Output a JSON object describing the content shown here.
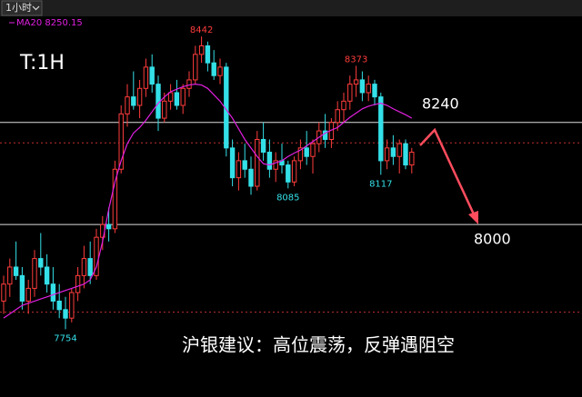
{
  "chart_data": {
    "type": "candlestick",
    "timeframe_menu": "1小时",
    "ma_label": "MA20 8250.15",
    "title": "T:1H",
    "caption": "沪银建议：高位震荡，反弹遇阻空",
    "ylim": [
      7680,
      8500
    ],
    "up_color": "#ff3c3c",
    "down_color": "#34e0e8",
    "ma_color": "#e020e0",
    "levels": [
      8240,
      8000
    ],
    "dashed_levels": [
      8192,
      7794
    ],
    "extremes": [
      8442,
      8373,
      8085,
      8117,
      7754
    ],
    "candles": [
      [
        7820,
        7880,
        7790,
        7860
      ],
      [
        7860,
        7920,
        7830,
        7900
      ],
      [
        7900,
        7960,
        7870,
        7880
      ],
      [
        7880,
        7900,
        7800,
        7820
      ],
      [
        7820,
        7870,
        7790,
        7850
      ],
      [
        7850,
        7940,
        7830,
        7920
      ],
      [
        7920,
        7980,
        7880,
        7900
      ],
      [
        7900,
        7930,
        7840,
        7860
      ],
      [
        7860,
        7900,
        7800,
        7820
      ],
      [
        7820,
        7860,
        7780,
        7800
      ],
      [
        7800,
        7830,
        7754,
        7780
      ],
      [
        7780,
        7850,
        7770,
        7840
      ],
      [
        7840,
        7900,
        7820,
        7880
      ],
      [
        7880,
        7950,
        7850,
        7920
      ],
      [
        7920,
        7960,
        7860,
        7880
      ],
      [
        7880,
        7990,
        7870,
        7970
      ],
      [
        7970,
        8020,
        7940,
        8000
      ],
      [
        8000,
        8040,
        7960,
        7990
      ],
      [
        7990,
        8150,
        7980,
        8130
      ],
      [
        8130,
        8280,
        8120,
        8260
      ],
      [
        8260,
        8330,
        8230,
        8300
      ],
      [
        8300,
        8360,
        8270,
        8280
      ],
      [
        8280,
        8340,
        8250,
        8320
      ],
      [
        8320,
        8390,
        8300,
        8370
      ],
      [
        8370,
        8400,
        8310,
        8330
      ],
      [
        8330,
        8350,
        8220,
        8250
      ],
      [
        8250,
        8310,
        8240,
        8290
      ],
      [
        8290,
        8330,
        8270,
        8310
      ],
      [
        8310,
        8340,
        8270,
        8280
      ],
      [
        8280,
        8330,
        8260,
        8320
      ],
      [
        8320,
        8360,
        8300,
        8340
      ],
      [
        8340,
        8420,
        8330,
        8400
      ],
      [
        8400,
        8442,
        8380,
        8420
      ],
      [
        8420,
        8430,
        8360,
        8380
      ],
      [
        8380,
        8410,
        8340,
        8350
      ],
      [
        8350,
        8390,
        8330,
        8370
      ],
      [
        8370,
        8380,
        8160,
        8180
      ],
      [
        8180,
        8200,
        8090,
        8110
      ],
      [
        8110,
        8170,
        8080,
        8150
      ],
      [
        8150,
        8190,
        8110,
        8130
      ],
      [
        8130,
        8160,
        8070,
        8090
      ],
      [
        8090,
        8220,
        8080,
        8200
      ],
      [
        8200,
        8240,
        8150,
        8170
      ],
      [
        8170,
        8200,
        8110,
        8130
      ],
      [
        8130,
        8170,
        8100,
        8150
      ],
      [
        8150,
        8190,
        8120,
        8140
      ],
      [
        8140,
        8150,
        8085,
        8100
      ],
      [
        8100,
        8160,
        8090,
        8150
      ],
      [
        8150,
        8200,
        8130,
        8180
      ],
      [
        8180,
        8220,
        8140,
        8160
      ],
      [
        8160,
        8200,
        8120,
        8190
      ],
      [
        8190,
        8240,
        8170,
        8220
      ],
      [
        8220,
        8260,
        8180,
        8200
      ],
      [
        8200,
        8250,
        8180,
        8240
      ],
      [
        8240,
        8290,
        8220,
        8270
      ],
      [
        8270,
        8310,
        8240,
        8290
      ],
      [
        8290,
        8350,
        8270,
        8330
      ],
      [
        8330,
        8373,
        8300,
        8340
      ],
      [
        8340,
        8360,
        8290,
        8310
      ],
      [
        8310,
        8350,
        8290,
        8330
      ],
      [
        8330,
        8340,
        8280,
        8300
      ],
      [
        8300,
        8310,
        8117,
        8150
      ],
      [
        8150,
        8200,
        8130,
        8180
      ],
      [
        8180,
        8210,
        8140,
        8160
      ],
      [
        8160,
        8200,
        8120,
        8190
      ],
      [
        8190,
        8200,
        8130,
        8140
      ],
      [
        8140,
        8180,
        8120,
        8170
      ]
    ],
    "ma20": [
      7780,
      7790,
      7800,
      7810,
      7815,
      7820,
      7825,
      7830,
      7835,
      7840,
      7845,
      7850,
      7855,
      7860,
      7870,
      7900,
      7960,
      8036,
      8100,
      8150,
      8190,
      8215,
      8228,
      8245,
      8265,
      8285,
      8300,
      8312,
      8318,
      8324,
      8328,
      8330,
      8328,
      8320,
      8305,
      8290,
      8270,
      8250,
      8225,
      8200,
      8180,
      8160,
      8143,
      8140,
      8145,
      8150,
      8160,
      8168,
      8175,
      8185,
      8195,
      8205,
      8215,
      8222,
      8228,
      8240,
      8252,
      8262,
      8272,
      8278,
      8282,
      8285,
      8280,
      8272,
      8265,
      8258,
      8250
    ]
  }
}
